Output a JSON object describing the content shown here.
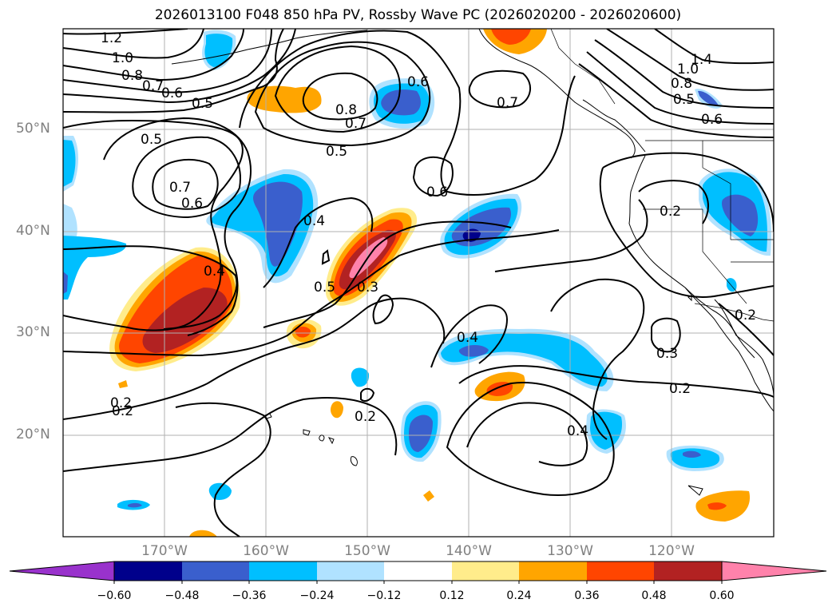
{
  "title": "2026013100 F048 850 hPa PV, Rossby Wave PC (2026020200 - 2026020600)",
  "latitude_labels": [
    "50°N",
    "40°N",
    "30°N",
    "20°N"
  ],
  "longitude_labels": [
    "170°W",
    "160°W",
    "150°W",
    "140°W",
    "130°W",
    "120°W"
  ],
  "colorbar": {
    "tick_labels": [
      "−0.60",
      "−0.48",
      "−0.36",
      "−0.24",
      "−0.12",
      "0.12",
      "0.24",
      "0.36",
      "0.48",
      "0.60"
    ],
    "bins": [
      {
        "color": "#9932cc"
      },
      {
        "color": "#00008b"
      },
      {
        "color": "#3a5fcd"
      },
      {
        "color": "#00bfff"
      },
      {
        "color": "#b0e2ff"
      },
      {
        "color": "#ffffff"
      },
      {
        "color": "#ffec8b"
      },
      {
        "color": "#ffa500"
      },
      {
        "color": "#ff4500"
      },
      {
        "color": "#b22222"
      },
      {
        "color": "#ff82ab"
      }
    ]
  },
  "contour_labels": [
    "1.2",
    "1.0",
    "0.8",
    "0.7",
    "0.6",
    "0.5",
    "0.5",
    "0.7",
    "0.6",
    "0.5",
    "0.4",
    "0.5",
    "0.3",
    "0.8",
    "0.7",
    "0.6",
    "0.6",
    "0.7",
    "0.4",
    "0.4",
    "0.2",
    "0.2",
    "0.2",
    "0.4",
    "1.4",
    "1.0",
    "0.8",
    "0.5",
    "0.6",
    "0.2",
    "0.2",
    "0.3",
    "0.2"
  ]
}
